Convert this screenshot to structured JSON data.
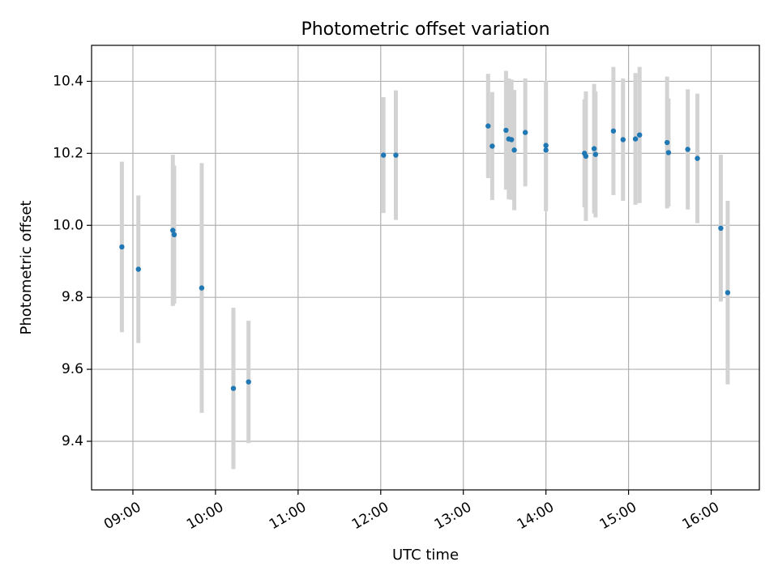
{
  "chart_data": {
    "type": "scatter",
    "title": "Photometric offset variation",
    "xlabel": "UTC time",
    "ylabel": "Photometric offset",
    "xlim": [
      "08:30",
      "16:35"
    ],
    "ylim": [
      9.265,
      10.5
    ],
    "grid": true,
    "x_ticks": [
      "09:00",
      "10:00",
      "11:00",
      "12:00",
      "13:00",
      "14:00",
      "15:00",
      "16:00"
    ],
    "y_ticks": [
      "9.4",
      "9.6",
      "9.8",
      "10.0",
      "10.2",
      "10.4"
    ],
    "point_color": "#1f77b4",
    "errorbar_color": "#d3d3d3",
    "series": [
      {
        "name": "Photometric offset",
        "points": [
          {
            "t": "08:52",
            "y": 9.94,
            "err": 0.237
          },
          {
            "t": "09:04",
            "y": 9.878,
            "err": 0.205
          },
          {
            "t": "09:29",
            "y": 9.986,
            "err": 0.21
          },
          {
            "t": "09:30",
            "y": 9.974,
            "err": 0.192
          },
          {
            "t": "09:50",
            "y": 9.826,
            "err": 0.347
          },
          {
            "t": "10:13",
            "y": 9.547,
            "err": 0.224
          },
          {
            "t": "10:24",
            "y": 9.565,
            "err": 0.17
          },
          {
            "t": "12:02",
            "y": 10.195,
            "err": 0.161
          },
          {
            "t": "12:11",
            "y": 10.195,
            "err": 0.18
          },
          {
            "t": "13:18",
            "y": 10.276,
            "err": 0.145
          },
          {
            "t": "13:21",
            "y": 10.22,
            "err": 0.15
          },
          {
            "t": "13:31",
            "y": 10.264,
            "err": 0.165
          },
          {
            "t": "13:33",
            "y": 10.24,
            "err": 0.168
          },
          {
            "t": "13:35",
            "y": 10.238,
            "err": 0.167
          },
          {
            "t": "13:37",
            "y": 10.209,
            "err": 0.167
          },
          {
            "t": "13:45",
            "y": 10.258,
            "err": 0.15
          },
          {
            "t": "14:00",
            "y": 10.222,
            "err": 0.18
          },
          {
            "t": "14:00",
            "y": 10.209,
            "err": 0.17
          },
          {
            "t": "14:28",
            "y": 10.2,
            "err": 0.15
          },
          {
            "t": "14:29",
            "y": 10.192,
            "err": 0.18
          },
          {
            "t": "14:35",
            "y": 10.213,
            "err": 0.18
          },
          {
            "t": "14:36",
            "y": 10.197,
            "err": 0.175
          },
          {
            "t": "14:49",
            "y": 10.262,
            "err": 0.178
          },
          {
            "t": "14:56",
            "y": 10.238,
            "err": 0.17
          },
          {
            "t": "15:05",
            "y": 10.24,
            "err": 0.183
          },
          {
            "t": "15:08",
            "y": 10.251,
            "err": 0.189
          },
          {
            "t": "15:28",
            "y": 10.23,
            "err": 0.183
          },
          {
            "t": "15:29",
            "y": 10.202,
            "err": 0.15
          },
          {
            "t": "15:43",
            "y": 10.211,
            "err": 0.167
          },
          {
            "t": "15:50",
            "y": 10.186,
            "err": 0.18
          },
          {
            "t": "16:07",
            "y": 9.992,
            "err": 0.204
          },
          {
            "t": "16:12",
            "y": 9.813,
            "err": 0.255
          }
        ]
      }
    ]
  }
}
